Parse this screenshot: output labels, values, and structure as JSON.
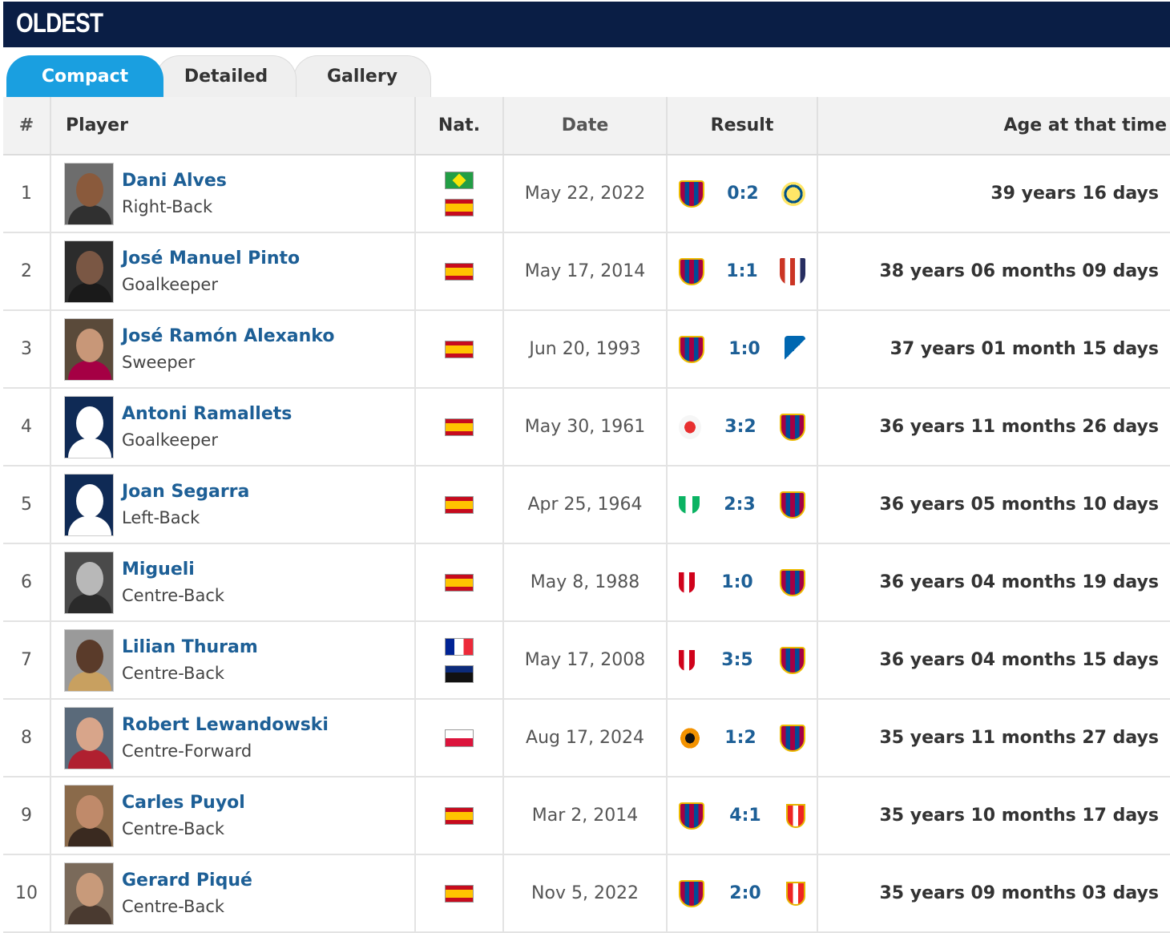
{
  "header": {
    "title": "OLDEST"
  },
  "tabs": [
    {
      "label": "Compact",
      "active": true
    },
    {
      "label": "Detailed",
      "active": false
    },
    {
      "label": "Gallery",
      "active": false
    }
  ],
  "table": {
    "columns": {
      "num": "#",
      "player": "Player",
      "nat": "Nat.",
      "date": "Date",
      "result": "Result",
      "age": "Age at that time"
    },
    "rows": [
      {
        "num": "1",
        "name": "Dani Alves",
        "position": "Right-Back",
        "flags": [
          "br",
          "es"
        ],
        "date": "May 22, 2022",
        "home": "fcb",
        "score": "0:2",
        "away": "vil",
        "age": "39 years 16 days",
        "photo": "photo",
        "skin": "#8a5a3c",
        "bg": "#6d6d6d",
        "shirt": "#303030"
      },
      {
        "num": "2",
        "name": "José Manuel Pinto",
        "position": "Goalkeeper",
        "flags": [
          "es"
        ],
        "date": "May 17, 2014",
        "home": "fcb",
        "score": "1:1",
        "away": "atm",
        "age": "38 years 06 months 09 days",
        "photo": "photo",
        "skin": "#7a5744",
        "bg": "#2c2c2c",
        "shirt": "#1a1a1a"
      },
      {
        "num": "3",
        "name": "José Ramón Alexanko",
        "position": "Sweeper",
        "flags": [
          "es"
        ],
        "date": "Jun 20, 1993",
        "home": "fcb",
        "score": "1:0",
        "away": "rso",
        "age": "37 years 01 month 15 days",
        "photo": "photo",
        "skin": "#c89778",
        "bg": "#5a4a3a",
        "shirt": "#a50044"
      },
      {
        "num": "4",
        "name": "Antoni Ramallets",
        "position": "Goalkeeper",
        "flags": [
          "es"
        ],
        "date": "May 30, 1961",
        "home": "ben",
        "score": "3:2",
        "away": "fcb",
        "age": "36 years 11 months 26 days",
        "photo": "silhouette"
      },
      {
        "num": "5",
        "name": "Joan Segarra",
        "position": "Left-Back",
        "flags": [
          "es"
        ],
        "date": "Apr 25, 1964",
        "home": "bet",
        "score": "2:3",
        "away": "fcb",
        "age": "36 years 05 months 10 days",
        "photo": "silhouette"
      },
      {
        "num": "6",
        "name": "Migueli",
        "position": "Centre-Back",
        "flags": [
          "es"
        ],
        "date": "May 8, 1988",
        "home": "spg",
        "score": "1:0",
        "away": "fcb",
        "age": "36 years 04 months 19 days",
        "photo": "photo",
        "skin": "#b8b8b8",
        "bg": "#4a4a4a",
        "shirt": "#2a2a2a"
      },
      {
        "num": "7",
        "name": "Lilian Thuram",
        "position": "Centre-Back",
        "flags": [
          "fr",
          "gp"
        ],
        "date": "May 17, 2008",
        "home": "spg",
        "score": "3:5",
        "away": "fcb",
        "age": "36 years 04 months 15 days",
        "photo": "photo",
        "skin": "#5a3b2a",
        "bg": "#9a9a9a",
        "shirt": "#c8a060"
      },
      {
        "num": "8",
        "name": "Robert Lewandowski",
        "position": "Centre-Forward",
        "flags": [
          "pl"
        ],
        "date": "Aug 17, 2024",
        "home": "val",
        "score": "1:2",
        "away": "fcb",
        "age": "35 years 11 months 27 days",
        "photo": "photo",
        "skin": "#d8a58a",
        "bg": "#5a6a7a",
        "shirt": "#b02030"
      },
      {
        "num": "9",
        "name": "Carles Puyol",
        "position": "Centre-Back",
        "flags": [
          "es"
        ],
        "date": "Mar 2, 2014",
        "home": "fcb",
        "score": "4:1",
        "away": "alm",
        "age": "35 years 10 months 17 days",
        "photo": "photo",
        "skin": "#c08a6a",
        "bg": "#8a6a4a",
        "shirt": "#3a2a20"
      },
      {
        "num": "10",
        "name": "Gerard Piqué",
        "position": "Centre-Back",
        "flags": [
          "es"
        ],
        "date": "Nov 5, 2022",
        "home": "fcb",
        "score": "2:0",
        "away": "alm",
        "age": "35 years 09 months 03 days",
        "photo": "photo",
        "skin": "#c89a7a",
        "bg": "#7a6a5a",
        "shirt": "#4a3a30"
      }
    ]
  }
}
